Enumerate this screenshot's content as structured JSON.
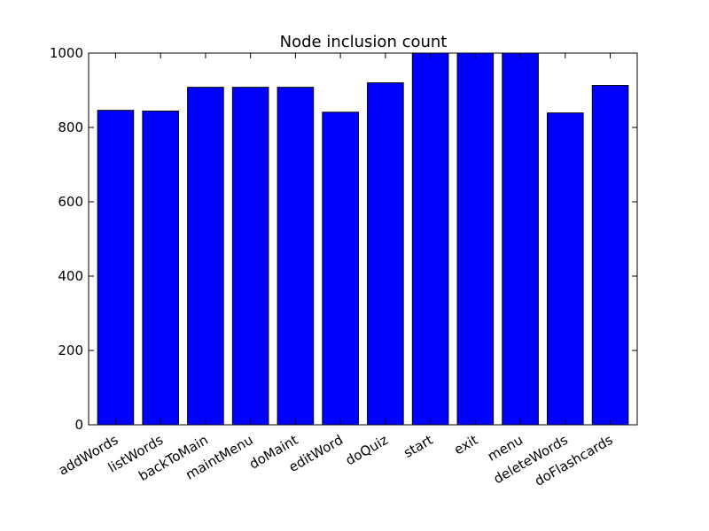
{
  "chart_data": {
    "type": "bar",
    "title": "Node inclusion count",
    "xlabel": "",
    "ylabel": "",
    "categories": [
      "addWords",
      "listWords",
      "backToMain",
      "maintMenu",
      "doMaint",
      "editWord",
      "doQuiz",
      "start",
      "exit",
      "menu",
      "deleteWords",
      "doFlashcards"
    ],
    "values": [
      846,
      844,
      908,
      908,
      908,
      841,
      920,
      1000,
      1000,
      1000,
      839,
      913
    ],
    "ylim": [
      0,
      1000
    ],
    "yticks": [
      0,
      200,
      400,
      600,
      800,
      1000
    ],
    "grid": false,
    "bar_color": "#0000ff",
    "edge_color": "#000000"
  }
}
